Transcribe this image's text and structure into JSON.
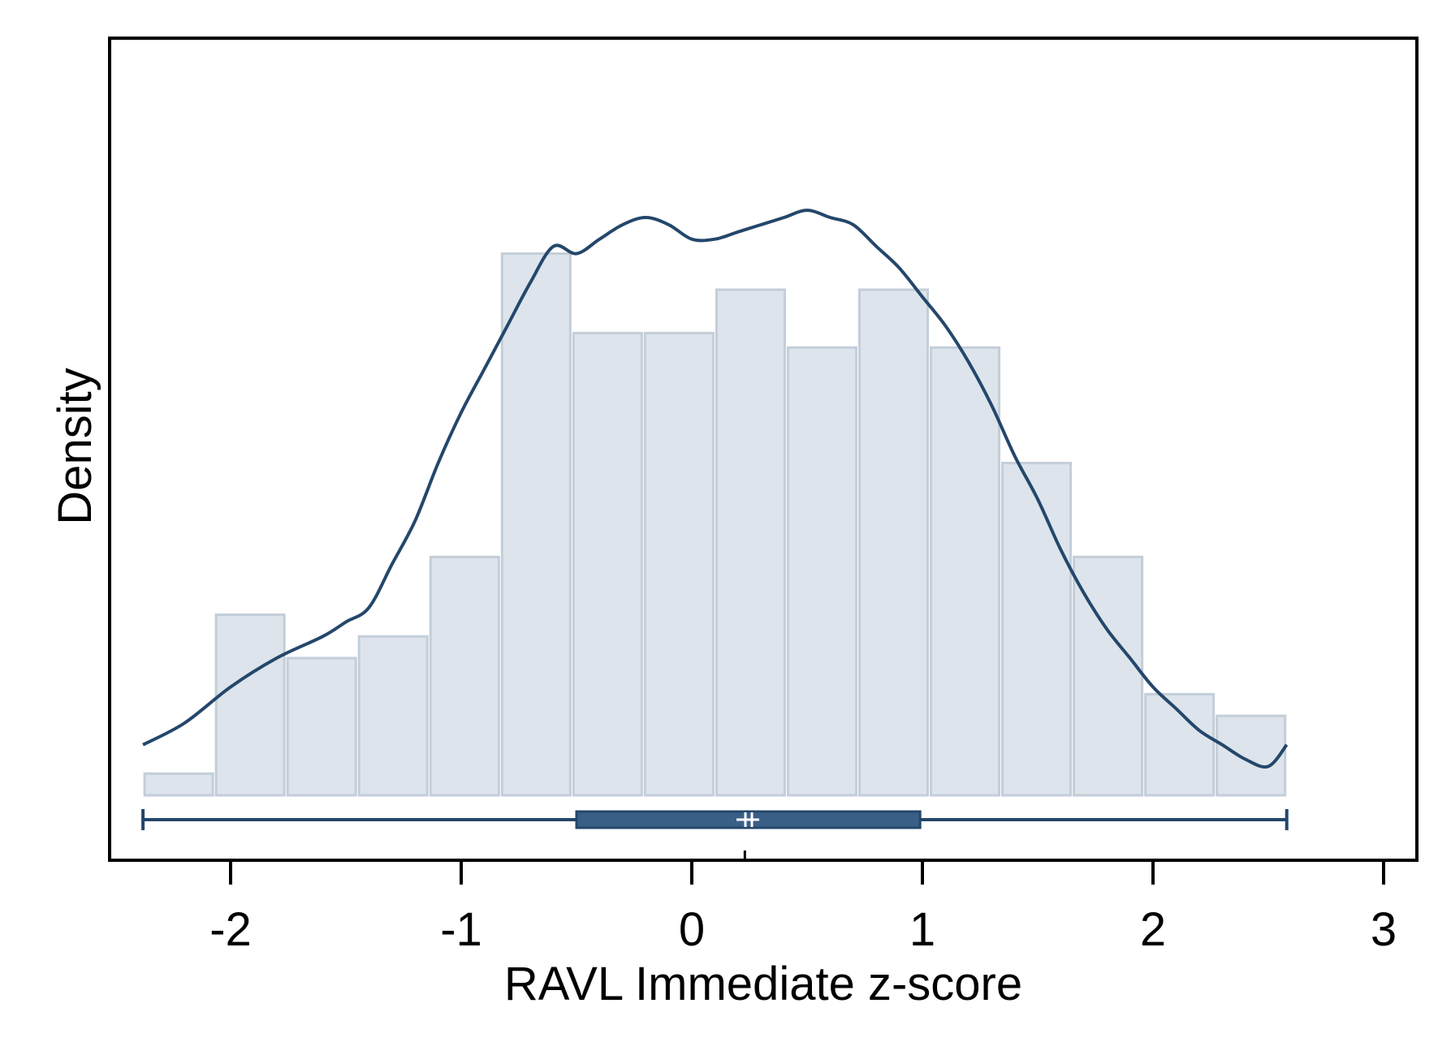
{
  "chart_data": {
    "type": "histogram",
    "xlabel": "RAVL Immediate z-score",
    "ylabel": "Density",
    "xlim": [
      -2.4,
      3.1
    ],
    "ylim": [
      0,
      1.0
    ],
    "x_ticks": [
      -2,
      -1,
      0,
      1,
      2,
      3
    ],
    "x_tick_labels": [
      "-2",
      "-1",
      "0",
      "1",
      "2",
      "3"
    ],
    "y_ticks_shown": false,
    "grid": false,
    "legend": "none",
    "bins": [
      {
        "start": -2.38,
        "end": -2.07,
        "density": 0.03
      },
      {
        "start": -2.07,
        "end": -1.76,
        "density": 0.25
      },
      {
        "start": -1.76,
        "end": -1.45,
        "density": 0.19
      },
      {
        "start": -1.45,
        "end": -1.14,
        "density": 0.22
      },
      {
        "start": -1.14,
        "end": -0.83,
        "density": 0.33
      },
      {
        "start": -0.83,
        "end": -0.52,
        "density": 0.75
      },
      {
        "start": -0.52,
        "end": -0.21,
        "density": 0.64
      },
      {
        "start": -0.21,
        "end": 0.1,
        "density": 0.64
      },
      {
        "start": 0.1,
        "end": 0.41,
        "density": 0.7
      },
      {
        "start": 0.41,
        "end": 0.72,
        "density": 0.62
      },
      {
        "start": 0.72,
        "end": 1.03,
        "density": 0.7
      },
      {
        "start": 1.03,
        "end": 1.34,
        "density": 0.62
      },
      {
        "start": 1.34,
        "end": 1.65,
        "density": 0.46
      },
      {
        "start": 1.65,
        "end": 1.96,
        "density": 0.33
      },
      {
        "start": 1.96,
        "end": 2.27,
        "density": 0.14
      },
      {
        "start": 2.27,
        "end": 2.58,
        "density": 0.11
      }
    ],
    "kde": {
      "x": [
        -2.38,
        -2.2,
        -2.0,
        -1.8,
        -1.6,
        -1.5,
        -1.4,
        -1.3,
        -1.2,
        -1.1,
        -1.0,
        -0.9,
        -0.8,
        -0.7,
        -0.6,
        -0.5,
        -0.4,
        -0.3,
        -0.2,
        -0.1,
        0.0,
        0.1,
        0.2,
        0.3,
        0.4,
        0.5,
        0.6,
        0.7,
        0.8,
        0.9,
        1.0,
        1.1,
        1.2,
        1.3,
        1.4,
        1.5,
        1.6,
        1.7,
        1.8,
        1.9,
        2.0,
        2.1,
        2.2,
        2.3,
        2.4,
        2.5,
        2.58
      ],
      "y": [
        0.07,
        0.1,
        0.15,
        0.19,
        0.22,
        0.24,
        0.26,
        0.32,
        0.38,
        0.46,
        0.53,
        0.59,
        0.65,
        0.71,
        0.76,
        0.75,
        0.77,
        0.79,
        0.8,
        0.79,
        0.77,
        0.77,
        0.78,
        0.79,
        0.8,
        0.81,
        0.8,
        0.79,
        0.76,
        0.73,
        0.69,
        0.65,
        0.6,
        0.54,
        0.47,
        0.41,
        0.34,
        0.28,
        0.23,
        0.19,
        0.15,
        0.12,
        0.09,
        0.07,
        0.05,
        0.04,
        0.07
      ]
    },
    "boxplot": {
      "min": -2.38,
      "q1": -0.5,
      "median": 0.25,
      "q3": 0.99,
      "max": 2.58
    },
    "mean_tick": 0.23,
    "colors": {
      "bar_fill": "#dde4eb",
      "bar_stroke": "#c3ced9",
      "line": "#24476b",
      "box_fill": "#3a5f87",
      "frame": "#000000"
    }
  }
}
